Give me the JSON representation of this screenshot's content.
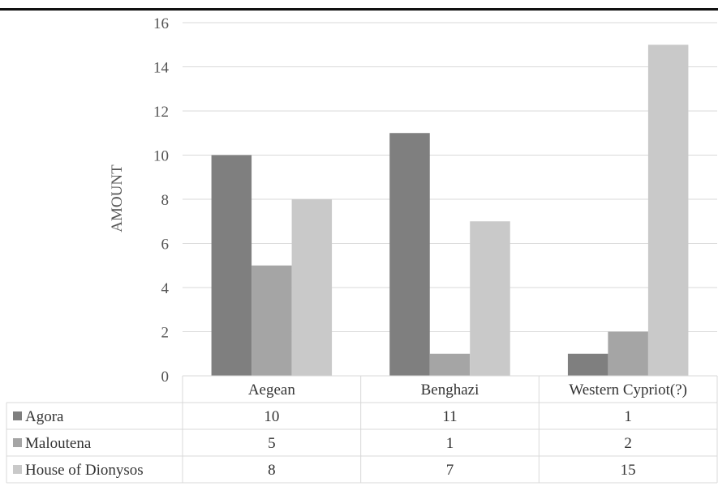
{
  "chart_data": {
    "type": "bar",
    "ylabel": "AMOUNT",
    "ylim": [
      0,
      16
    ],
    "yticks": [
      "0",
      "2",
      "4",
      "6",
      "8",
      "10",
      "12",
      "14",
      "16"
    ],
    "categories": [
      "Aegean",
      "Benghazi",
      "Western Cypriot(?)"
    ],
    "grid": true,
    "legend": "data-table",
    "series": [
      {
        "name": "Agora",
        "color": "#7f7f7f",
        "values": [
          10,
          11,
          1
        ]
      },
      {
        "name": "Maloutena",
        "color": "#a5a5a5",
        "values": [
          5,
          1,
          2
        ]
      },
      {
        "name": "House of Dionysos",
        "color": "#c9c9c9",
        "values": [
          8,
          7,
          15
        ]
      }
    ]
  }
}
